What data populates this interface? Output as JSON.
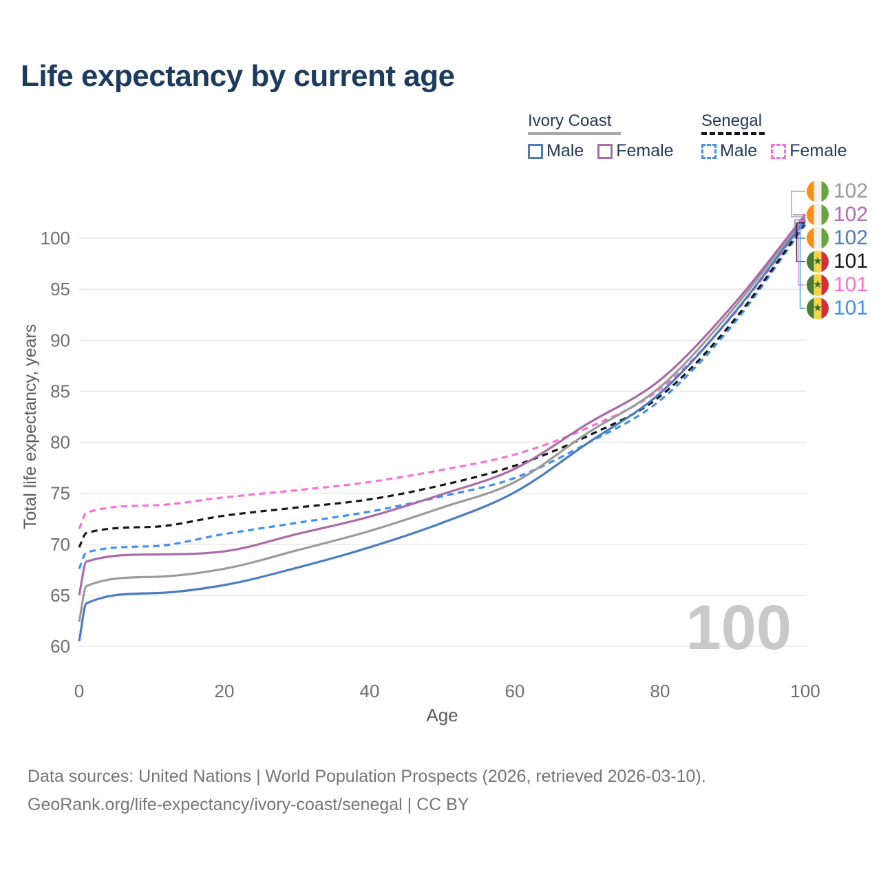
{
  "title": "Life expectancy by current age",
  "watermark": "100",
  "legend": {
    "groups": [
      {
        "label": "Ivory Coast",
        "line_style": "solid",
        "underline_color": "#a8a8a8",
        "items": [
          {
            "label": "Male",
            "color": "#4c7cc0",
            "dashed": false
          },
          {
            "label": "Female",
            "color": "#aa6ca8",
            "dashed": false
          }
        ]
      },
      {
        "label": "Senegal",
        "line_style": "dashed",
        "underline_color": "#161616",
        "items": [
          {
            "label": "Male",
            "color": "#418ef5",
            "dashed": true
          },
          {
            "label": "Female",
            "color": "#ff6fd8",
            "dashed": true
          }
        ]
      }
    ]
  },
  "chart_data": {
    "type": "line",
    "title": "Life expectancy by current age",
    "xlabel": "Age",
    "ylabel": "Total life expectancy, years",
    "xlim": [
      0,
      100
    ],
    "ylim": [
      58,
      104
    ],
    "xticks": [
      0,
      20,
      40,
      60,
      80,
      100
    ],
    "yticks": [
      60,
      65,
      70,
      75,
      80,
      85,
      90,
      95,
      100
    ],
    "grid": "horizontal",
    "legend_position": "top-right",
    "x": [
      0,
      1,
      10,
      20,
      30,
      40,
      50,
      60,
      70,
      80,
      90,
      100
    ],
    "series": [
      {
        "name": "Ivory Coast Male",
        "country": "Ivory Coast",
        "sex": "Male",
        "color": "#4c7cc0",
        "dashed": false,
        "end_label": "102",
        "values": [
          60.5,
          64.2,
          65.2,
          66.0,
          67.7,
          69.7,
          72.1,
          75.1,
          79.9,
          84.8,
          92.5,
          101.8
        ]
      },
      {
        "name": "Ivory Coast Both sexes",
        "country": "Ivory Coast",
        "sex": "Both",
        "color": "#9b9b9b",
        "dashed": false,
        "end_label": "102",
        "values": [
          62.4,
          65.9,
          66.8,
          67.6,
          69.4,
          71.3,
          73.6,
          76.1,
          80.9,
          85.4,
          93.0,
          102.1
        ]
      },
      {
        "name": "Ivory Coast Female",
        "country": "Ivory Coast",
        "sex": "Female",
        "color": "#aa6ca8",
        "dashed": false,
        "end_label": "102",
        "values": [
          65.0,
          68.3,
          69.0,
          69.3,
          71.0,
          72.7,
          74.9,
          77.4,
          81.8,
          86.1,
          93.4,
          102.3
        ]
      },
      {
        "name": "Senegal Male",
        "country": "Senegal",
        "sex": "Male",
        "color": "#418ef5",
        "dashed": true,
        "end_label": "101",
        "values": [
          67.6,
          69.2,
          69.8,
          71.0,
          72.1,
          73.2,
          74.7,
          76.5,
          79.9,
          84.1,
          91.5,
          101.3
        ]
      },
      {
        "name": "Senegal Both sexes",
        "country": "Senegal",
        "sex": "Both",
        "color": "#161616",
        "dashed": true,
        "end_label": "101",
        "values": [
          69.7,
          71.1,
          71.7,
          72.8,
          73.6,
          74.4,
          75.8,
          77.7,
          80.6,
          84.5,
          91.8,
          101.5
        ]
      },
      {
        "name": "Senegal Female",
        "country": "Senegal",
        "sex": "Female",
        "color": "#ff6fd8",
        "dashed": true,
        "end_label": "101",
        "values": [
          71.5,
          73.1,
          73.8,
          74.6,
          75.3,
          76.1,
          77.3,
          78.8,
          81.4,
          85.2,
          92.4,
          101.7
        ]
      }
    ]
  },
  "end_labels": [
    {
      "flag": "ivory-coast",
      "value": "102",
      "color": "#9b9b9b",
      "series": "Ivory Coast Both sexes"
    },
    {
      "flag": "ivory-coast",
      "value": "102",
      "color": "#b36eb3",
      "series": "Ivory Coast Female"
    },
    {
      "flag": "ivory-coast",
      "value": "102",
      "color": "#4c7cc0",
      "series": "Ivory Coast Male"
    },
    {
      "flag": "senegal",
      "value": "101",
      "color": "#161616",
      "series": "Senegal Both sexes"
    },
    {
      "flag": "senegal",
      "value": "101",
      "color": "#ff6fd8",
      "series": "Senegal Female"
    },
    {
      "flag": "senegal",
      "value": "101",
      "color": "#418ef5",
      "series": "Senegal Male"
    }
  ],
  "footer": {
    "line1": "Data sources: United Nations | World Population Prospects (2026, retrieved 2026-03-10).",
    "line2": "GeoRank.org/life-expectancy/ivory-coast/senegal | CC BY"
  }
}
